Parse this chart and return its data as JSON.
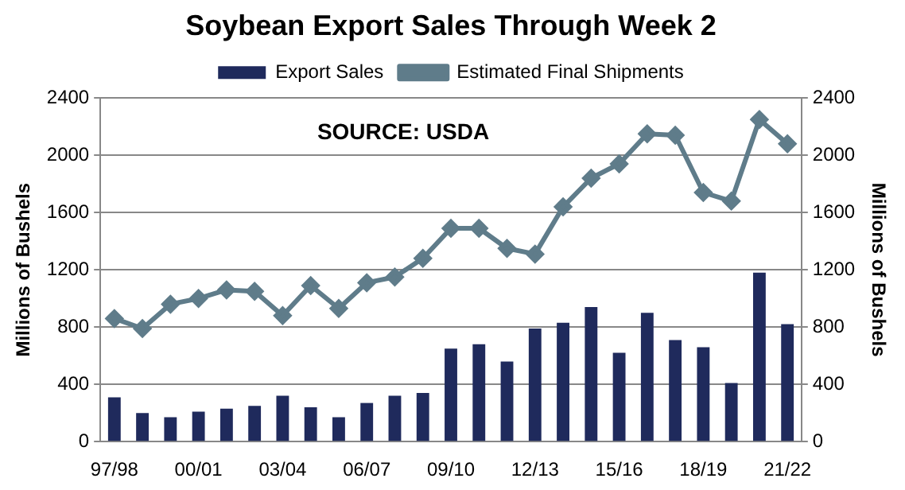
{
  "chart_data": {
    "type": "bar",
    "title": "Soybean Export Sales Through Week 2",
    "categories": [
      "97/98",
      null,
      null,
      "00/01",
      null,
      null,
      "03/04",
      null,
      null,
      "06/07",
      null,
      null,
      "09/10",
      null,
      null,
      "12/13",
      null,
      null,
      "15/16",
      null,
      null,
      "18/19",
      null,
      null,
      "21/22"
    ],
    "series": [
      {
        "name": "Export Sales",
        "color": "#1f2a5c",
        "values": [
          310,
          200,
          170,
          210,
          230,
          250,
          320,
          240,
          170,
          270,
          320,
          340,
          650,
          680,
          560,
          790,
          830,
          940,
          620,
          900,
          710,
          660,
          410,
          1180,
          820
        ]
      },
      {
        "name": "Estimated Final Shipments",
        "type": "line",
        "color": "#5f7c8a",
        "marker": "diamond",
        "values": [
          860,
          790,
          960,
          1000,
          1060,
          1050,
          880,
          1090,
          930,
          1110,
          1150,
          1280,
          1490,
          1490,
          1350,
          1310,
          1640,
          1840,
          1940,
          2150,
          2140,
          1740,
          1680,
          2250,
          2080
        ]
      }
    ],
    "ylabel": "Millions of Bushels",
    "y2label": "Millions of Bushels",
    "ylim": [
      0,
      2400
    ],
    "yticks": [
      0,
      400,
      800,
      1200,
      1600,
      2000,
      2400
    ],
    "y2lim": [
      0,
      2400
    ],
    "y2ticks": [
      0,
      400,
      800,
      1200,
      1600,
      2000,
      2400
    ],
    "grid": "y",
    "legend": "top",
    "annotations": [
      "SOURCE: USDA"
    ]
  }
}
